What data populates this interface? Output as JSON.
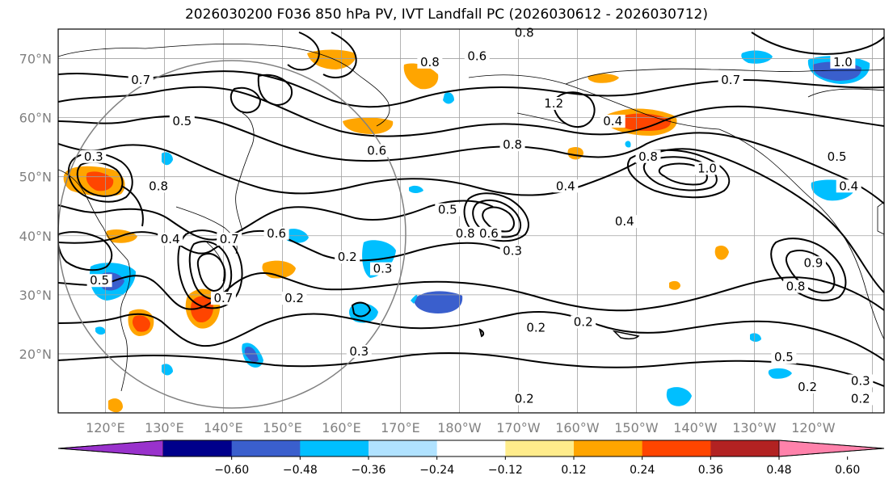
{
  "title": "2026030200 F036 850 hPa PV, IVT Landfall PC (2026030612 - 2026030712)",
  "lat_labels": [
    "70°N",
    "60°N",
    "50°N",
    "40°N",
    "30°N",
    "20°N"
  ],
  "lon_labels": [
    "120°E",
    "130°E",
    "140°E",
    "150°E",
    "160°E",
    "170°E",
    "180°W",
    "170°W",
    "160°W",
    "150°W",
    "140°W",
    "130°W",
    "120°W"
  ],
  "colorbar": {
    "colors": [
      "#9932cc",
      "#00008b",
      "#3a5fcd",
      "#00bfff",
      "#b0e2ff",
      "#ffffff",
      "#ffec8b",
      "#ffa500",
      "#ff4500",
      "#b22222",
      "#ff82ab"
    ],
    "tick_labels": [
      "−0.60",
      "−0.48",
      "−0.36",
      "−0.24",
      "−0.12",
      "0.12",
      "0.24",
      "0.36",
      "0.48",
      "0.60"
    ]
  },
  "contour_labels": [
    {
      "text": "0.7",
      "lon": 126,
      "lat": 66
    },
    {
      "text": "0.5",
      "lon": 133,
      "lat": 59
    },
    {
      "text": "0.6",
      "lon": 166,
      "lat": 54
    },
    {
      "text": "0.8",
      "lon": 175,
      "lat": 69
    },
    {
      "text": "0.6",
      "lon": 183,
      "lat": 70
    },
    {
      "text": "0.8",
      "lon": 191,
      "lat": 74
    },
    {
      "text": "1.2",
      "lon": 196,
      "lat": 62
    },
    {
      "text": "0.8",
      "lon": 189,
      "lat": 55
    },
    {
      "text": "0.4",
      "lon": 206,
      "lat": 59
    },
    {
      "text": "0.7",
      "lon": 226,
      "lat": 66
    },
    {
      "text": "1.0",
      "lon": 245,
      "lat": 69
    },
    {
      "text": "1.0",
      "lon": 222,
      "lat": 51
    },
    {
      "text": "0.8",
      "lon": 212,
      "lat": 53
    },
    {
      "text": "0.4",
      "lon": 246,
      "lat": 48
    },
    {
      "text": "0.5",
      "lon": 244,
      "lat": 53
    },
    {
      "text": "0.4",
      "lon": 198,
      "lat": 48
    },
    {
      "text": "0.4",
      "lon": 208,
      "lat": 42
    },
    {
      "text": "0.8",
      "lon": 181,
      "lat": 40
    },
    {
      "text": "0.6",
      "lon": 185,
      "lat": 40
    },
    {
      "text": "0.5",
      "lon": 178,
      "lat": 44
    },
    {
      "text": "0.3",
      "lon": 189,
      "lat": 37
    },
    {
      "text": "0.8",
      "lon": 237,
      "lat": 31
    },
    {
      "text": "0.9",
      "lon": 240,
      "lat": 35
    },
    {
      "text": "0.5",
      "lon": 235,
      "lat": 19
    },
    {
      "text": "0.2",
      "lon": 239,
      "lat": 14
    },
    {
      "text": "0.3",
      "lon": 248,
      "lat": 15
    },
    {
      "text": "0.2",
      "lon": 248,
      "lat": 12
    },
    {
      "text": "0.2",
      "lon": 193,
      "lat": 24
    },
    {
      "text": "0.2",
      "lon": 201,
      "lat": 25
    },
    {
      "text": "0.2",
      "lon": 191,
      "lat": 12
    },
    {
      "text": "0.3",
      "lon": 163,
      "lat": 20
    },
    {
      "text": "0.2",
      "lon": 161,
      "lat": 36
    },
    {
      "text": "0.3",
      "lon": 167,
      "lat": 34
    },
    {
      "text": "0.2",
      "lon": 152,
      "lat": 29
    },
    {
      "text": "0.6",
      "lon": 149,
      "lat": 40
    },
    {
      "text": "0.7",
      "lon": 141,
      "lat": 39
    },
    {
      "text": "0.7",
      "lon": 140,
      "lat": 29
    },
    {
      "text": "0.8",
      "lon": 129,
      "lat": 48
    },
    {
      "text": "0.3",
      "lon": 118,
      "lat": 53
    },
    {
      "text": "0.5",
      "lon": 119,
      "lat": 32
    },
    {
      "text": "0.4",
      "lon": 131,
      "lat": 39
    }
  ]
}
